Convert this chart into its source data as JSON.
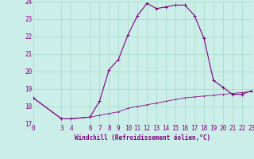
{
  "title": "",
  "xlabel": "Windchill (Refroidissement éolien,°C)",
  "background_color": "#cceee8",
  "grid_color": "#aaddcc",
  "line_color": "#800080",
  "hours": [
    0,
    3,
    4,
    6,
    7,
    8,
    9,
    10,
    11,
    12,
    13,
    14,
    15,
    16,
    17,
    18,
    19,
    20,
    21,
    22,
    23
  ],
  "windchill": [
    18.5,
    17.3,
    17.3,
    17.4,
    18.3,
    20.1,
    20.7,
    22.1,
    23.2,
    23.9,
    23.6,
    23.7,
    23.8,
    23.8,
    23.2,
    21.9,
    19.5,
    19.1,
    18.7,
    18.7,
    18.9
  ],
  "temperature": [
    18.5,
    17.3,
    17.3,
    17.4,
    17.5,
    17.6,
    17.7,
    17.9,
    18.0,
    18.1,
    18.2,
    18.3,
    18.4,
    18.5,
    18.55,
    18.6,
    18.65,
    18.7,
    18.75,
    18.8,
    18.85
  ],
  "ylim": [
    17,
    24
  ],
  "yticks": [
    17,
    18,
    19,
    20,
    21,
    22,
    23,
    24
  ],
  "xlim": [
    0,
    23
  ],
  "xticks": [
    0,
    3,
    4,
    6,
    7,
    8,
    9,
    10,
    11,
    12,
    13,
    14,
    15,
    16,
    17,
    18,
    19,
    20,
    21,
    22,
    23
  ],
  "xlabel_fontsize": 5.5,
  "tick_fontsize": 5.5,
  "marker_size": 2.0,
  "linewidth": 0.8
}
